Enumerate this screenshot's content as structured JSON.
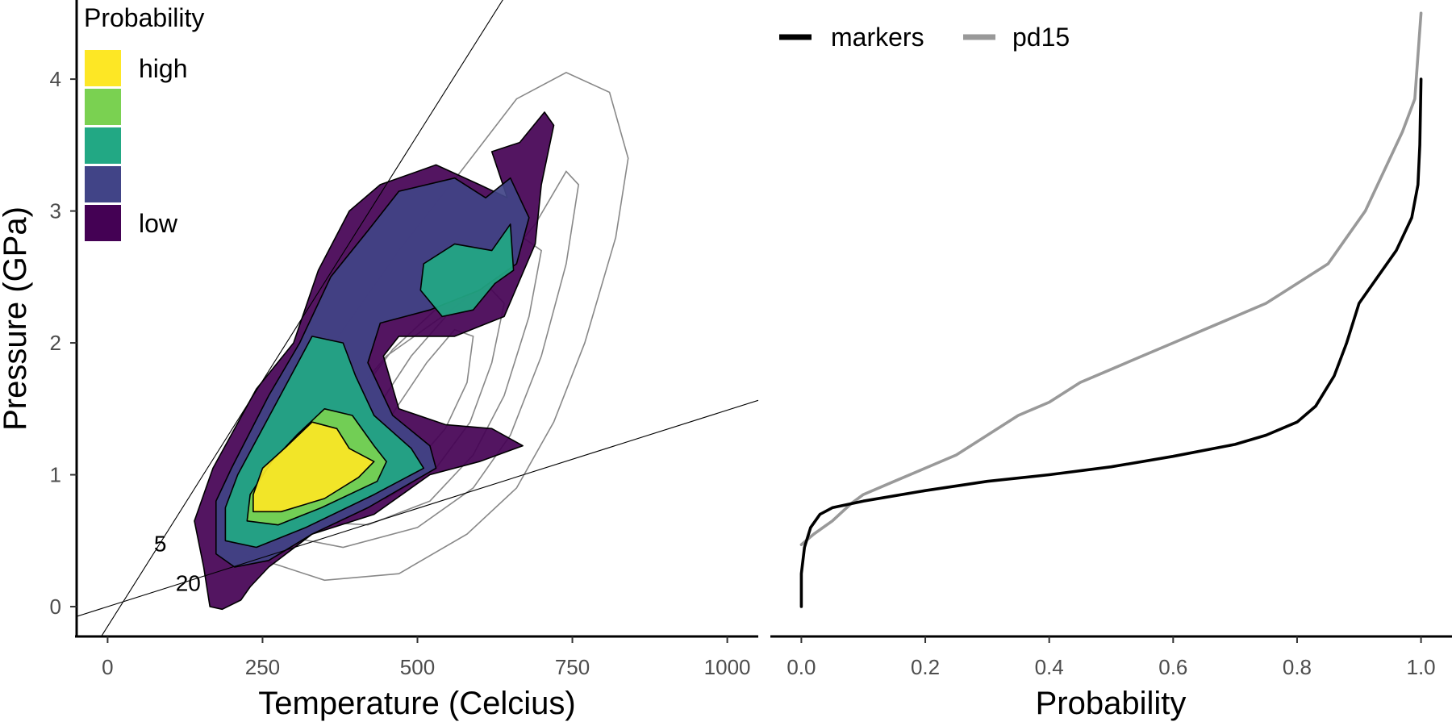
{
  "colors": {
    "axis": "#000000",
    "tick_text": "#4d4d4d",
    "fill_high": "#FDE725",
    "fill_2": "#7AD151",
    "fill_3": "#22A884",
    "fill_4": "#414487",
    "fill_low": "#440154",
    "markers_line": "#000000",
    "pd15_line": "#999999",
    "contour_outline": "#888888"
  },
  "chart_data": [
    {
      "type": "contour",
      "xlabel": "Temperature (Celcius)",
      "ylabel": "Pressure (GPa)",
      "xlim": [
        -50,
        1050
      ],
      "ylim": [
        -0.22,
        4.6
      ],
      "x_ticks": [
        "0",
        "250",
        "500",
        "750",
        "1000"
      ],
      "y_ticks": [
        "0",
        "1",
        "2",
        "3",
        "4"
      ],
      "grid": false,
      "legend": {
        "title": "Probability",
        "position": "top-left",
        "entries": [
          "high",
          "",
          "",
          "",
          "low"
        ]
      },
      "reference_lines": [
        {
          "label": "5",
          "intercept": -0.15,
          "slope": 0.00745
        },
        {
          "label": "20",
          "intercept": 0.0,
          "slope": 0.00149
        }
      ],
      "filled_regions": [
        {
          "level": "low",
          "polygon": [
            [
              165,
              0.0
            ],
            [
              185,
              -0.02
            ],
            [
              215,
              0.05
            ],
            [
              230,
              0.15
            ],
            [
              260,
              0.3
            ],
            [
              330,
              0.55
            ],
            [
              430,
              0.7
            ],
            [
              520,
              1.0
            ],
            [
              600,
              1.1
            ],
            [
              670,
              1.22
            ],
            [
              620,
              1.35
            ],
            [
              545,
              1.38
            ],
            [
              470,
              1.5
            ],
            [
              445,
              1.9
            ],
            [
              470,
              2.05
            ],
            [
              560,
              2.05
            ],
            [
              640,
              2.2
            ],
            [
              690,
              2.75
            ],
            [
              700,
              3.2
            ],
            [
              720,
              3.65
            ],
            [
              705,
              3.75
            ],
            [
              665,
              3.52
            ],
            [
              620,
              3.45
            ],
            [
              645,
              3.1
            ],
            [
              600,
              3.2
            ],
            [
              530,
              3.35
            ],
            [
              440,
              3.2
            ],
            [
              390,
              3.0
            ],
            [
              340,
              2.55
            ],
            [
              300,
              2.0
            ],
            [
              240,
              1.65
            ],
            [
              170,
              1.05
            ],
            [
              140,
              0.65
            ],
            [
              155,
              0.3
            ]
          ]
        },
        {
          "level": "mid-low",
          "polygon": [
            [
              175,
              0.4
            ],
            [
              205,
              0.3
            ],
            [
              260,
              0.35
            ],
            [
              330,
              0.55
            ],
            [
              420,
              0.75
            ],
            [
              530,
              1.05
            ],
            [
              520,
              1.22
            ],
            [
              460,
              1.45
            ],
            [
              420,
              1.85
            ],
            [
              440,
              2.15
            ],
            [
              520,
              2.25
            ],
            [
              600,
              2.4
            ],
            [
              660,
              2.6
            ],
            [
              680,
              2.95
            ],
            [
              650,
              3.25
            ],
            [
              610,
              3.1
            ],
            [
              560,
              3.25
            ],
            [
              470,
              3.15
            ],
            [
              420,
              2.85
            ],
            [
              360,
              2.5
            ],
            [
              310,
              2.0
            ],
            [
              260,
              1.6
            ],
            [
              200,
              1.05
            ],
            [
              175,
              0.8
            ]
          ]
        },
        {
          "level": "mid",
          "polygon": [
            [
              190,
              0.5
            ],
            [
              240,
              0.45
            ],
            [
              320,
              0.6
            ],
            [
              430,
              0.85
            ],
            [
              510,
              1.05
            ],
            [
              490,
              1.2
            ],
            [
              430,
              1.45
            ],
            [
              400,
              1.75
            ],
            [
              380,
              2.0
            ],
            [
              330,
              2.05
            ],
            [
              290,
              1.7
            ],
            [
              250,
              1.35
            ],
            [
              210,
              1.0
            ],
            [
              190,
              0.75
            ]
          ]
        },
        {
          "level": "mid",
          "polygon": [
            [
              510,
              2.6
            ],
            [
              560,
              2.75
            ],
            [
              620,
              2.7
            ],
            [
              650,
              2.9
            ],
            [
              655,
              2.55
            ],
            [
              625,
              2.45
            ],
            [
              590,
              2.25
            ],
            [
              540,
              2.2
            ],
            [
              505,
              2.4
            ]
          ]
        },
        {
          "level": "mid-high",
          "polygon": [
            [
              225,
              0.65
            ],
            [
              275,
              0.62
            ],
            [
              345,
              0.75
            ],
            [
              435,
              0.95
            ],
            [
              450,
              1.1
            ],
            [
              430,
              1.22
            ],
            [
              395,
              1.45
            ],
            [
              350,
              1.5
            ],
            [
              305,
              1.3
            ],
            [
              265,
              1.1
            ],
            [
              230,
              0.85
            ]
          ]
        },
        {
          "level": "high",
          "polygon": [
            [
              235,
              0.72
            ],
            [
              280,
              0.72
            ],
            [
              350,
              0.82
            ],
            [
              405,
              0.98
            ],
            [
              430,
              1.1
            ],
            [
              390,
              1.2
            ],
            [
              370,
              1.35
            ],
            [
              330,
              1.4
            ],
            [
              290,
              1.22
            ],
            [
              250,
              1.05
            ],
            [
              235,
              0.85
            ]
          ]
        }
      ],
      "background_contours": [
        [
          [
            220,
            0.4
          ],
          [
            350,
            0.2
          ],
          [
            470,
            0.25
          ],
          [
            580,
            0.55
          ],
          [
            660,
            0.9
          ],
          [
            720,
            1.4
          ],
          [
            770,
            2.0
          ],
          [
            820,
            2.8
          ],
          [
            840,
            3.4
          ],
          [
            810,
            3.9
          ],
          [
            740,
            4.05
          ],
          [
            660,
            3.85
          ],
          [
            570,
            3.3
          ],
          [
            470,
            2.7
          ],
          [
            380,
            2.1
          ],
          [
            290,
            1.4
          ],
          [
            230,
            0.9
          ]
        ],
        [
          [
            270,
            0.55
          ],
          [
            380,
            0.45
          ],
          [
            500,
            0.6
          ],
          [
            590,
            0.9
          ],
          [
            650,
            1.3
          ],
          [
            700,
            1.9
          ],
          [
            740,
            2.6
          ],
          [
            760,
            3.2
          ],
          [
            740,
            3.3
          ],
          [
            690,
            2.9
          ],
          [
            620,
            2.5
          ],
          [
            540,
            2.2
          ],
          [
            450,
            1.9
          ],
          [
            360,
            1.4
          ],
          [
            290,
            0.95
          ]
        ],
        [
          [
            310,
            0.65
          ],
          [
            420,
            0.62
          ],
          [
            520,
            0.8
          ],
          [
            590,
            1.15
          ],
          [
            640,
            1.6
          ],
          [
            680,
            2.2
          ],
          [
            700,
            2.7
          ],
          [
            670,
            2.8
          ],
          [
            610,
            2.55
          ],
          [
            540,
            2.3
          ],
          [
            460,
            1.95
          ],
          [
            380,
            1.45
          ],
          [
            320,
            1.0
          ]
        ],
        [
          [
            360,
            0.78
          ],
          [
            450,
            0.82
          ],
          [
            530,
            1.05
          ],
          [
            585,
            1.4
          ],
          [
            620,
            1.85
          ],
          [
            640,
            2.3
          ],
          [
            610,
            2.45
          ],
          [
            555,
            2.25
          ],
          [
            490,
            1.9
          ],
          [
            420,
            1.4
          ],
          [
            370,
            1.05
          ]
        ],
        [
          [
            420,
            0.95
          ],
          [
            490,
            1.05
          ],
          [
            545,
            1.35
          ],
          [
            580,
            1.7
          ],
          [
            590,
            2.05
          ],
          [
            560,
            2.1
          ],
          [
            515,
            1.85
          ],
          [
            465,
            1.5
          ],
          [
            425,
            1.2
          ]
        ]
      ]
    },
    {
      "type": "line",
      "xlabel": "Probability",
      "ylabel": "Pressure (GPa)",
      "xlim": [
        -0.05,
        1.05
      ],
      "ylim": [
        -0.22,
        4.6
      ],
      "x_ticks": [
        "0.0",
        "0.2",
        "0.4",
        "0.6",
        "0.8",
        "1.0"
      ],
      "grid": false,
      "legend": {
        "position": "top-left",
        "entries": [
          "markers",
          "pd15"
        ]
      },
      "series": [
        {
          "name": "markers",
          "points": [
            [
              0.0,
              0.0
            ],
            [
              0.0,
              0.25
            ],
            [
              0.005,
              0.45
            ],
            [
              0.015,
              0.6
            ],
            [
              0.03,
              0.7
            ],
            [
              0.05,
              0.75
            ],
            [
              0.1,
              0.8
            ],
            [
              0.2,
              0.88
            ],
            [
              0.3,
              0.95
            ],
            [
              0.4,
              1.0
            ],
            [
              0.5,
              1.06
            ],
            [
              0.6,
              1.14
            ],
            [
              0.7,
              1.23
            ],
            [
              0.75,
              1.3
            ],
            [
              0.8,
              1.4
            ],
            [
              0.83,
              1.52
            ],
            [
              0.86,
              1.75
            ],
            [
              0.88,
              2.0
            ],
            [
              0.9,
              2.3
            ],
            [
              0.93,
              2.5
            ],
            [
              0.96,
              2.7
            ],
            [
              0.985,
              2.95
            ],
            [
              0.995,
              3.2
            ],
            [
              0.998,
              3.5
            ],
            [
              1.0,
              4.0
            ]
          ]
        },
        {
          "name": "pd15",
          "points": [
            [
              0.0,
              0.47
            ],
            [
              0.02,
              0.55
            ],
            [
              0.05,
              0.65
            ],
            [
              0.08,
              0.78
            ],
            [
              0.1,
              0.85
            ],
            [
              0.15,
              0.95
            ],
            [
              0.2,
              1.05
            ],
            [
              0.25,
              1.15
            ],
            [
              0.3,
              1.3
            ],
            [
              0.35,
              1.45
            ],
            [
              0.4,
              1.55
            ],
            [
              0.45,
              1.7
            ],
            [
              0.5,
              1.8
            ],
            [
              0.55,
              1.9
            ],
            [
              0.6,
              2.0
            ],
            [
              0.65,
              2.1
            ],
            [
              0.7,
              2.2
            ],
            [
              0.75,
              2.3
            ],
            [
              0.8,
              2.45
            ],
            [
              0.85,
              2.6
            ],
            [
              0.88,
              2.8
            ],
            [
              0.91,
              3.0
            ],
            [
              0.94,
              3.3
            ],
            [
              0.97,
              3.6
            ],
            [
              0.99,
              3.85
            ],
            [
              1.0,
              4.5
            ]
          ]
        }
      ]
    }
  ]
}
